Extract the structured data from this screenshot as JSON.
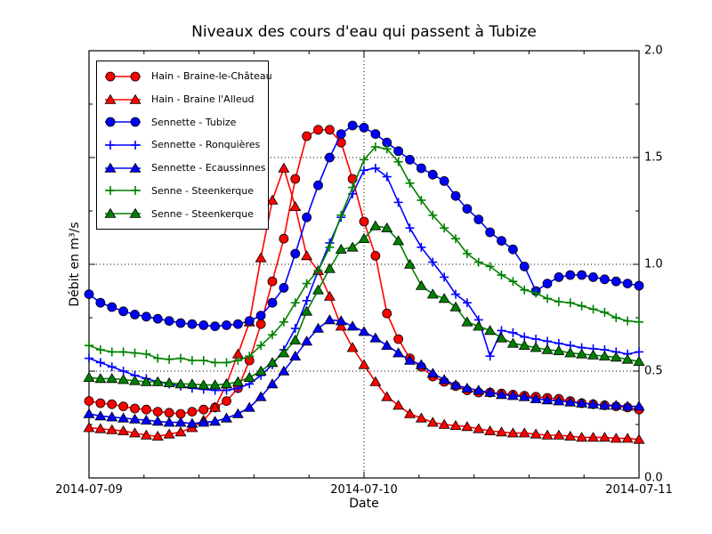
{
  "chart_data": {
    "type": "line",
    "title": "Niveaux des cours d'eau qui passent à Tubize",
    "xlabel": "Date",
    "ylabel": "Débit en m³/s",
    "x_tick_labels": [
      "2014-07-09",
      "2014-07-10",
      "2014-07-11"
    ],
    "y_tick_labels": [
      "2.0",
      "1.5",
      "1.0",
      "0.5",
      "0.0"
    ],
    "ylim": [
      0.0,
      2.0
    ],
    "x_hours_total": 48,
    "x_major_hours": [
      0,
      24,
      48
    ],
    "x_minor_step_hours": 4.8,
    "y_major_step": 0.5,
    "y_minor_step": 0.25,
    "grid": {
      "y_values": [
        0.5,
        1.0,
        1.5
      ],
      "x_hours": [
        24
      ],
      "style": "dotted"
    },
    "legend_position": "upper-left",
    "axis_color": "#000000",
    "series": [
      {
        "name": "Hain - Braine-le-Château",
        "color": "#ff0000",
        "marker": "circle",
        "values": [
          0.36,
          0.35,
          0.345,
          0.335,
          0.325,
          0.32,
          0.31,
          0.305,
          0.3,
          0.31,
          0.32,
          0.33,
          0.36,
          0.42,
          0.55,
          0.72,
          0.92,
          1.12,
          1.4,
          1.6,
          1.63,
          1.63,
          1.57,
          1.4,
          1.2,
          1.04,
          0.77,
          0.65,
          0.56,
          0.52,
          0.475,
          0.45,
          0.43,
          0.41,
          0.4,
          0.4,
          0.395,
          0.39,
          0.385,
          0.38,
          0.375,
          0.37,
          0.36,
          0.35,
          0.345,
          0.34,
          0.335,
          0.33,
          0.32
        ]
      },
      {
        "name": "Hain - Braine l'Alleud",
        "color": "#ff0000",
        "marker": "triangle",
        "values": [
          0.235,
          0.23,
          0.225,
          0.22,
          0.21,
          0.2,
          0.195,
          0.205,
          0.215,
          0.235,
          0.27,
          0.33,
          0.44,
          0.58,
          0.73,
          1.03,
          1.3,
          1.45,
          1.27,
          1.04,
          0.97,
          0.85,
          0.71,
          0.61,
          0.53,
          0.45,
          0.38,
          0.34,
          0.3,
          0.28,
          0.26,
          0.25,
          0.245,
          0.24,
          0.23,
          0.22,
          0.215,
          0.21,
          0.21,
          0.205,
          0.2,
          0.2,
          0.195,
          0.19,
          0.19,
          0.19,
          0.185,
          0.185,
          0.18
        ]
      },
      {
        "name": "Sennette - Tubize",
        "color": "#0000ff",
        "marker": "circle",
        "values": [
          0.86,
          0.82,
          0.8,
          0.78,
          0.765,
          0.755,
          0.745,
          0.735,
          0.725,
          0.72,
          0.715,
          0.71,
          0.715,
          0.72,
          0.735,
          0.76,
          0.82,
          0.89,
          1.05,
          1.22,
          1.37,
          1.5,
          1.61,
          1.65,
          1.64,
          1.61,
          1.57,
          1.53,
          1.49,
          1.45,
          1.42,
          1.39,
          1.32,
          1.26,
          1.21,
          1.15,
          1.11,
          1.07,
          0.99,
          0.875,
          0.91,
          0.94,
          0.95,
          0.95,
          0.94,
          0.93,
          0.92,
          0.91,
          0.9
        ]
      },
      {
        "name": "Sennette - Ronquières",
        "color": "#0000ff",
        "marker": "plus",
        "values": [
          0.56,
          0.54,
          0.52,
          0.5,
          0.48,
          0.465,
          0.45,
          0.44,
          0.43,
          0.42,
          0.415,
          0.41,
          0.41,
          0.42,
          0.44,
          0.48,
          0.53,
          0.6,
          0.7,
          0.83,
          0.97,
          1.1,
          1.22,
          1.33,
          1.44,
          1.45,
          1.41,
          1.29,
          1.17,
          1.08,
          1.01,
          0.94,
          0.86,
          0.82,
          0.74,
          0.57,
          0.69,
          0.68,
          0.66,
          0.65,
          0.64,
          0.63,
          0.62,
          0.61,
          0.605,
          0.6,
          0.59,
          0.58,
          0.59
        ]
      },
      {
        "name": "Sennette - Ecaussinnes",
        "color": "#0000ff",
        "marker": "triangle",
        "values": [
          0.3,
          0.29,
          0.285,
          0.28,
          0.275,
          0.27,
          0.265,
          0.26,
          0.26,
          0.255,
          0.26,
          0.265,
          0.28,
          0.3,
          0.33,
          0.38,
          0.44,
          0.5,
          0.57,
          0.64,
          0.7,
          0.74,
          0.735,
          0.71,
          0.685,
          0.655,
          0.62,
          0.585,
          0.55,
          0.53,
          0.49,
          0.46,
          0.435,
          0.42,
          0.41,
          0.4,
          0.39,
          0.385,
          0.38,
          0.37,
          0.365,
          0.36,
          0.355,
          0.35,
          0.345,
          0.34,
          0.34,
          0.335,
          0.335
        ]
      },
      {
        "name": "Senne - Steenkerque",
        "color": "#008000",
        "marker": "plus",
        "values": [
          0.62,
          0.6,
          0.59,
          0.59,
          0.585,
          0.58,
          0.56,
          0.555,
          0.56,
          0.55,
          0.55,
          0.54,
          0.54,
          0.55,
          0.57,
          0.62,
          0.67,
          0.73,
          0.82,
          0.91,
          0.97,
          1.08,
          1.23,
          1.36,
          1.49,
          1.55,
          1.54,
          1.48,
          1.38,
          1.3,
          1.23,
          1.17,
          1.12,
          1.05,
          1.01,
          0.99,
          0.95,
          0.92,
          0.88,
          0.865,
          0.84,
          0.825,
          0.82,
          0.805,
          0.79,
          0.775,
          0.75,
          0.735,
          0.73
        ]
      },
      {
        "name": "Senne - Steenkerque",
        "color": "#008000",
        "marker": "triangle",
        "values": [
          0.47,
          0.465,
          0.465,
          0.46,
          0.455,
          0.45,
          0.45,
          0.445,
          0.44,
          0.44,
          0.435,
          0.435,
          0.44,
          0.45,
          0.47,
          0.5,
          0.54,
          0.585,
          0.645,
          0.78,
          0.88,
          0.98,
          1.07,
          1.08,
          1.12,
          1.18,
          1.17,
          1.11,
          1.0,
          0.9,
          0.86,
          0.84,
          0.8,
          0.73,
          0.71,
          0.69,
          0.655,
          0.63,
          0.62,
          0.61,
          0.6,
          0.595,
          0.585,
          0.58,
          0.575,
          0.57,
          0.565,
          0.555,
          0.545
        ]
      }
    ]
  }
}
